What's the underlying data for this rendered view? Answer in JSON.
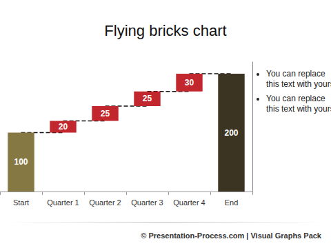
{
  "chart_data": {
    "type": "waterfall",
    "title": "Flying bricks chart",
    "categories": [
      "Start",
      "Quarter 1",
      "Quarter 2",
      "Quarter 3",
      "Quarter 4",
      "End"
    ],
    "values": [
      100,
      20,
      25,
      25,
      30,
      200
    ],
    "colors": [
      "#857843",
      "#c2272d",
      "#c2272d",
      "#c2272d",
      "#c2272d",
      "#3b3422"
    ],
    "ylim": [
      0,
      220
    ],
    "grid": false,
    "data_labels": true,
    "tick_labels": "x",
    "line_style": "dashed",
    "annotations": [
      "You can replace this text with yours",
      "You can replace this text with yours"
    ],
    "footer": "© Presentation-Process.com | Visual Graphs Pack"
  }
}
